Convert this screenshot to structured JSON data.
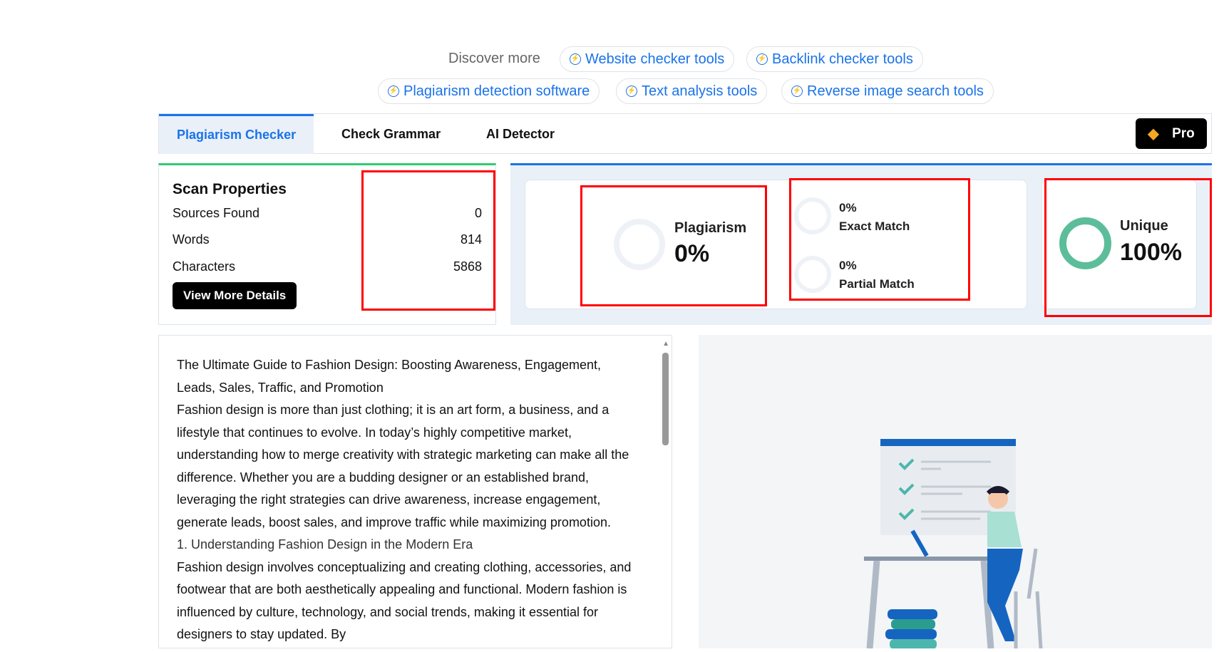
{
  "discover": {
    "label": "Discover more",
    "chips": [
      "Website checker tools",
      "Backlink checker tools",
      "Plagiarism detection software",
      "Text analysis tools",
      "Reverse image search tools"
    ]
  },
  "tabs": [
    {
      "label": "Plagiarism Checker",
      "active": true
    },
    {
      "label": "Check Grammar"
    },
    {
      "label": "AI Detector"
    }
  ],
  "pro": {
    "label": "Pro",
    "icon": "diamond-icon"
  },
  "scan": {
    "title": "Scan Properties",
    "rows": [
      {
        "label": "Sources Found",
        "value": "0"
      },
      {
        "label": "Words",
        "value": "814"
      },
      {
        "label": "Characters",
        "value": "5868"
      }
    ],
    "button": "View More Details"
  },
  "stats": {
    "plagiarism": {
      "label": "Plagiarism",
      "value": "0%"
    },
    "exact": {
      "value": "0%",
      "label": "Exact Match"
    },
    "partial": {
      "value": "0%",
      "label": "Partial Match"
    },
    "unique": {
      "label": "Unique",
      "value": "100%"
    }
  },
  "colors": {
    "accent": "#1a73e8",
    "unique": "#5cbd9b",
    "highlight": "#ff0000",
    "scan_border": "#2ecc71"
  },
  "content": {
    "paragraphs": [
      "The Ultimate Guide to Fashion Design: Boosting Awareness, Engagement, Leads, Sales, Traffic, and Promotion",
      "Fashion design is more than just clothing; it is an art form, a business, and a lifestyle that continues to evolve. In today’s highly competitive market, understanding how to merge creativity with strategic marketing can make all the difference. Whether you are a budding designer or an established brand, leveraging the right strategies can drive awareness, increase engagement, generate leads, boost sales, and improve traffic while maximizing promotion.",
      "1. Understanding Fashion Design in the Modern Era",
      "Fashion design involves conceptualizing and creating clothing, accessories, and footwear that are both aesthetically appealing and functional. Modern fashion is influenced by culture, technology, and social trends, making it essential for designers to stay updated. By"
    ]
  }
}
